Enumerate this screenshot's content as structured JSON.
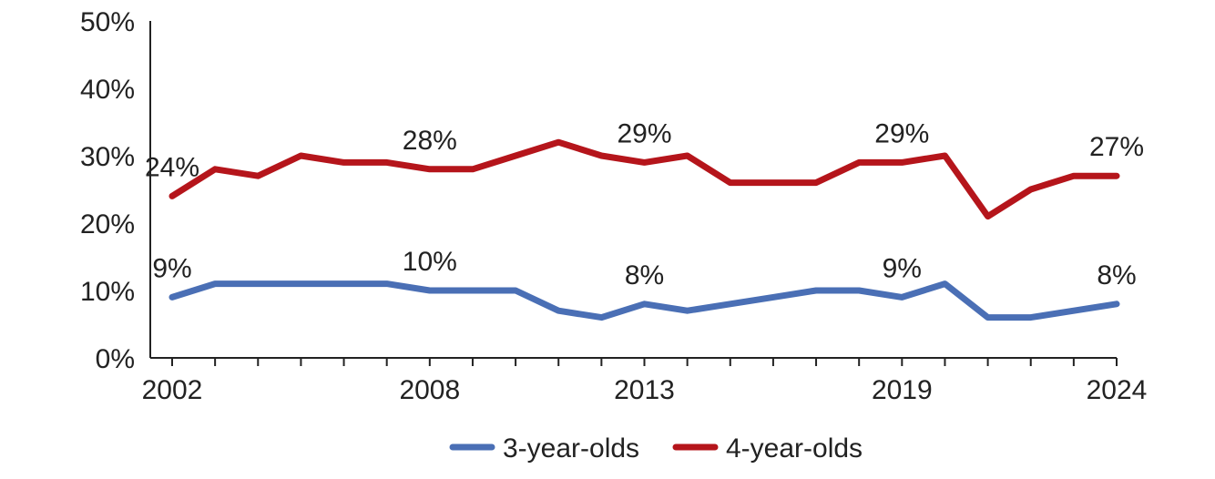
{
  "chart_data": {
    "type": "line",
    "title": "",
    "xlabel": "",
    "ylabel": "",
    "x": [
      2002,
      2003,
      2004,
      2005,
      2006,
      2007,
      2008,
      2009,
      2010,
      2011,
      2012,
      2013,
      2014,
      2015,
      2016,
      2017,
      2018,
      2019,
      2020,
      2021,
      2022,
      2023,
      2024
    ],
    "x_tick_labels": [
      "2002",
      "2008",
      "2013",
      "2019",
      "2024"
    ],
    "y_tick_labels": [
      "0%",
      "10%",
      "20%",
      "30%",
      "40%",
      "50%"
    ],
    "ylim": [
      0,
      50
    ],
    "y_unit": "%",
    "grid": false,
    "legend_position": "bottom",
    "series": [
      {
        "name": "3-year-olds",
        "color": "#4a6fb5",
        "values": [
          9,
          11,
          11,
          11,
          11,
          11,
          10,
          10,
          10,
          7,
          6,
          8,
          7,
          8,
          9,
          10,
          10,
          9,
          11,
          6,
          6,
          7,
          8
        ],
        "annotations": [
          {
            "x": 2002,
            "text": "9%"
          },
          {
            "x": 2008,
            "text": "10%"
          },
          {
            "x": 2013,
            "text": "8%"
          },
          {
            "x": 2019,
            "text": "9%"
          },
          {
            "x": 2024,
            "text": "8%"
          }
        ]
      },
      {
        "name": "4-year-olds",
        "color": "#b5151b",
        "values": [
          24,
          28,
          27,
          30,
          29,
          29,
          28,
          28,
          30,
          32,
          30,
          29,
          30,
          26,
          26,
          26,
          29,
          29,
          30,
          21,
          25,
          27,
          27
        ],
        "annotations": [
          {
            "x": 2002,
            "text": "24%"
          },
          {
            "x": 2008,
            "text": "28%"
          },
          {
            "x": 2013,
            "text": "29%"
          },
          {
            "x": 2019,
            "text": "29%"
          },
          {
            "x": 2024,
            "text": "27%"
          }
        ]
      }
    ]
  }
}
